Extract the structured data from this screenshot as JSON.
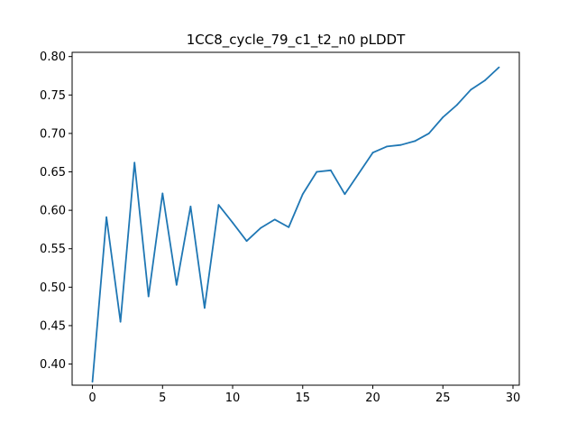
{
  "chart_data": {
    "type": "line",
    "title": "1CC8_cycle_79_c1_t2_n0 pLDDT",
    "xlabel": "",
    "ylabel": "",
    "xlim": [
      -1.45,
      30.45
    ],
    "ylim": [
      0.3725,
      0.8055
    ],
    "xticks": [
      0,
      5,
      10,
      15,
      20,
      25,
      30
    ],
    "yticks": [
      0.4,
      0.45,
      0.5,
      0.55,
      0.6,
      0.65,
      0.7,
      0.75,
      0.8
    ],
    "x": [
      0,
      1,
      2,
      3,
      4,
      5,
      6,
      7,
      8,
      9,
      10,
      11,
      12,
      13,
      14,
      15,
      16,
      17,
      18,
      19,
      20,
      21,
      22,
      23,
      24,
      25,
      26,
      27,
      28,
      29
    ],
    "series": [
      {
        "values": [
          0.377,
          0.591,
          0.455,
          0.662,
          0.488,
          0.622,
          0.503,
          0.605,
          0.473,
          0.607,
          0.584,
          0.56,
          0.577,
          0.588,
          0.578,
          0.621,
          0.65,
          0.652,
          0.621,
          0.648,
          0.675,
          0.683,
          0.685,
          0.69,
          0.7,
          0.721,
          0.737,
          0.757,
          0.769,
          0.786
        ],
        "color": "#1f77b4"
      }
    ],
    "grid": false,
    "legend": "none"
  }
}
